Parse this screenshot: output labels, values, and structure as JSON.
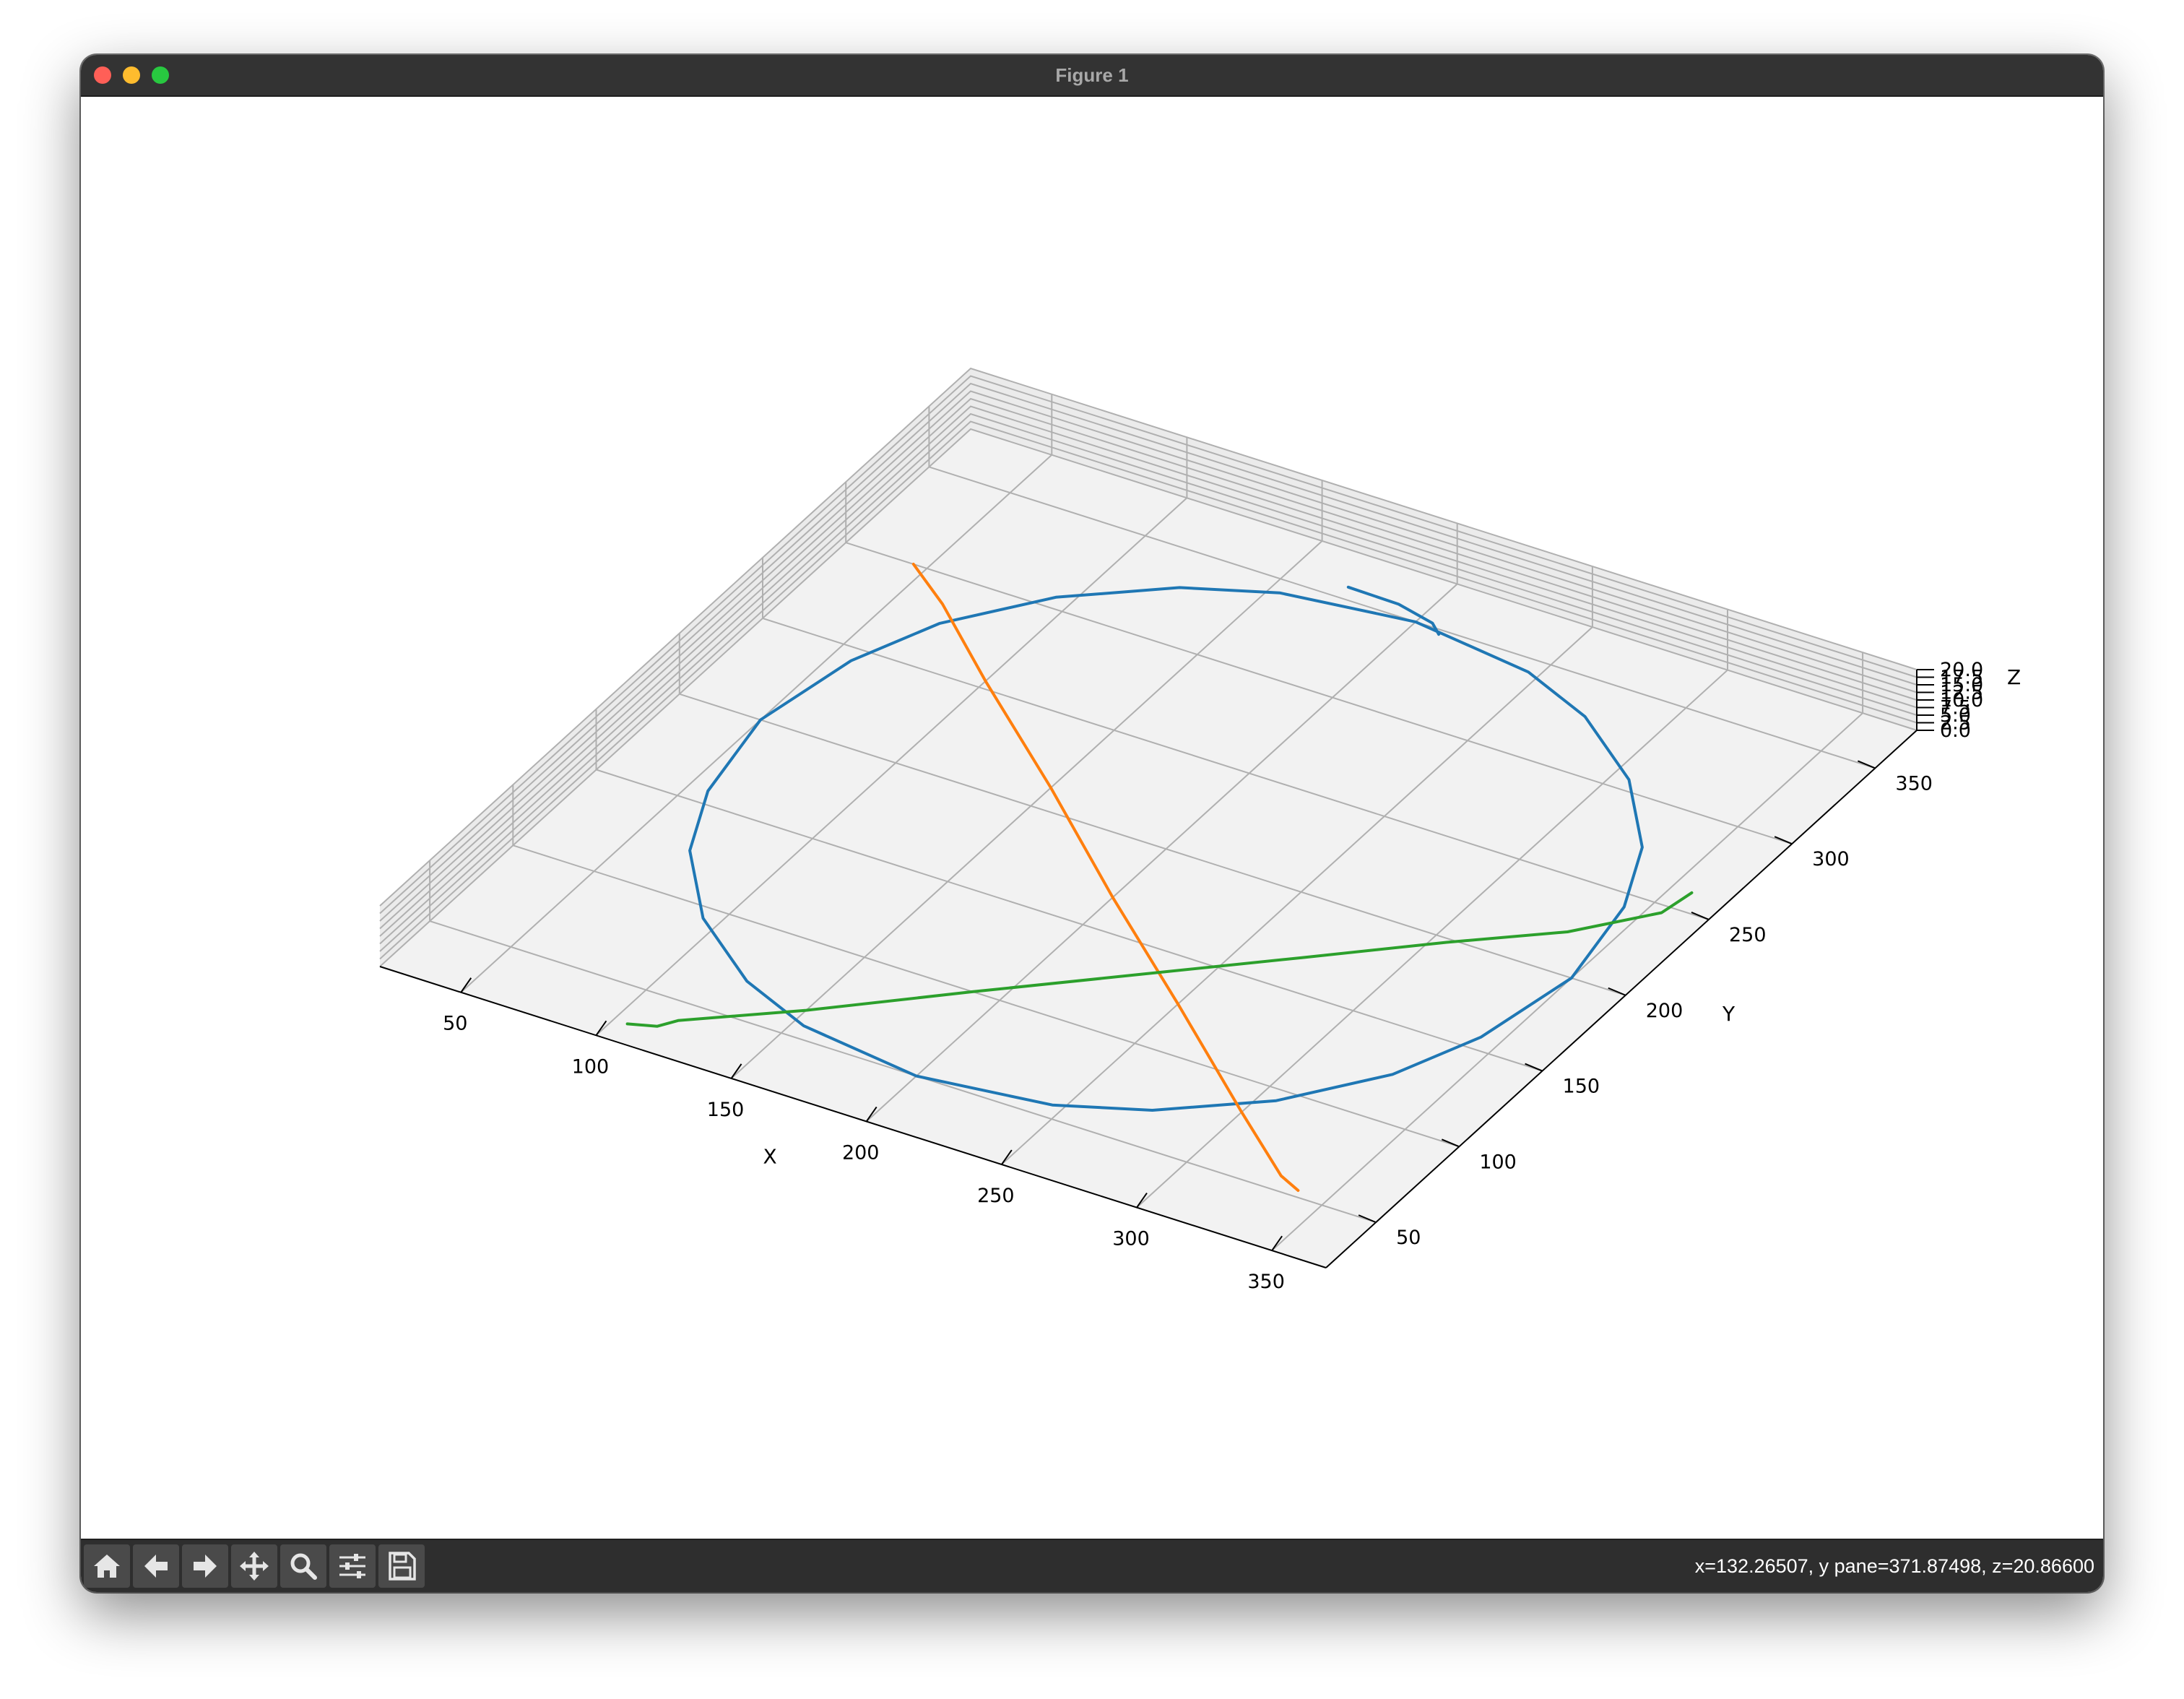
{
  "window": {
    "title": "Figure 1"
  },
  "toolbar": {
    "buttons": [
      {
        "name": "home-button",
        "icon": "home-icon"
      },
      {
        "name": "back-button",
        "icon": "arrow-left-icon"
      },
      {
        "name": "forward-button",
        "icon": "arrow-right-icon"
      },
      {
        "name": "pan-button",
        "icon": "move-icon"
      },
      {
        "name": "zoom-button",
        "icon": "magnifier-icon"
      },
      {
        "name": "configure-subplots-button",
        "icon": "sliders-icon"
      },
      {
        "name": "save-button",
        "icon": "floppy-disk-icon"
      }
    ],
    "status": "x=132.26507, y pane=371.87498, z=20.86600"
  },
  "chart_data": {
    "type": "line",
    "projection": "3d",
    "xlabel": "X",
    "ylabel": "Y",
    "zlabel": "Z",
    "xlim": [
      20,
      370
    ],
    "ylim": [
      20,
      375
    ],
    "zlim": [
      0,
      20
    ],
    "x_ticks": [
      "50",
      "100",
      "150",
      "200",
      "250",
      "300",
      "350"
    ],
    "y_ticks": [
      "50",
      "100",
      "150",
      "200",
      "250",
      "300",
      "350"
    ],
    "z_ticks": [
      "0.0",
      "2.5",
      "5.0",
      "7.5",
      "10.0",
      "12.5",
      "15.0",
      "17.5",
      "20.0"
    ],
    "grid": true,
    "series": [
      {
        "color": "#1f77b4",
        "description_points": "circle of radius ~150 centred at (200, 200) at z ~ 0",
        "points": [
          [
            350,
            200,
            0
          ],
          [
            343,
            243,
            0
          ],
          [
            330,
            275,
            0
          ],
          [
            306,
            306,
            0
          ],
          [
            275,
            330,
            0
          ],
          [
            246,
            343,
            0
          ],
          [
            200,
            350,
            0
          ],
          [
            154,
            343,
            0
          ],
          [
            125,
            330,
            0
          ],
          [
            94,
            306,
            0
          ],
          [
            70,
            275,
            0
          ],
          [
            57,
            243,
            0
          ],
          [
            50,
            200,
            0
          ],
          [
            57,
            157,
            0
          ],
          [
            70,
            125,
            0
          ],
          [
            94,
            94,
            0
          ],
          [
            125,
            70,
            0
          ],
          [
            154,
            57,
            0
          ],
          [
            200,
            50,
            0
          ],
          [
            246,
            57,
            0
          ],
          [
            275,
            70,
            0
          ],
          [
            306,
            94,
            0
          ],
          [
            330,
            125,
            0
          ],
          [
            343,
            157,
            0
          ],
          [
            350,
            200,
            0
          ]
        ]
      },
      {
        "color": "#1f77b4",
        "points": [
          [
            172,
            355,
            1
          ],
          [
            190,
            356,
            0
          ],
          [
            205,
            352,
            0
          ],
          [
            211,
            346,
            1
          ]
        ]
      },
      {
        "color": "#ff7f0e",
        "points": [
          [
            45,
            300,
            0
          ],
          [
            65,
            285,
            0
          ],
          [
            100,
            254,
            0
          ],
          [
            150,
            212,
            0
          ],
          [
            200,
            168,
            0
          ],
          [
            250,
            126,
            0
          ],
          [
            300,
            83,
            0
          ],
          [
            330,
            58,
            0
          ],
          [
            340,
            52,
            1
          ]
        ]
      },
      {
        "color": "#2ca02c",
        "points": [
          [
            106,
            29,
            1
          ],
          [
            114,
            34,
            0
          ],
          [
            118,
            40,
            0
          ],
          [
            150,
            65,
            0
          ],
          [
            190,
            100,
            0
          ],
          [
            230,
            134,
            0
          ],
          [
            270,
            168,
            0
          ],
          [
            305,
            198,
            0
          ],
          [
            335,
            222,
            0
          ],
          [
            355,
            246,
            0
          ],
          [
            360,
            256,
            3
          ]
        ]
      }
    ]
  }
}
